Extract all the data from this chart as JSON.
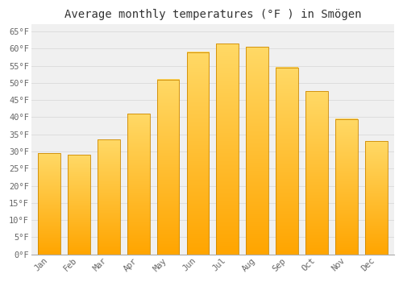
{
  "title": "Average monthly temperatures (°F ) in Smögen",
  "months": [
    "Jan",
    "Feb",
    "Mar",
    "Apr",
    "May",
    "Jun",
    "Jul",
    "Aug",
    "Sep",
    "Oct",
    "Nov",
    "Dec"
  ],
  "values": [
    29.5,
    29.0,
    33.5,
    41.0,
    51.0,
    59.0,
    61.5,
    60.5,
    54.5,
    47.5,
    39.5,
    33.0
  ],
  "bar_color_top": "#FFD966",
  "bar_color_bottom": "#FFA500",
  "bar_edge_color": "#CC8800",
  "background_color": "#FFFFFF",
  "plot_bg_color": "#F0F0F0",
  "grid_color": "#DDDDDD",
  "ylim": [
    0,
    67
  ],
  "yticks": [
    0,
    5,
    10,
    15,
    20,
    25,
    30,
    35,
    40,
    45,
    50,
    55,
    60,
    65
  ],
  "ytick_labels": [
    "0°F",
    "5°F",
    "10°F",
    "15°F",
    "20°F",
    "25°F",
    "30°F",
    "35°F",
    "40°F",
    "45°F",
    "50°F",
    "55°F",
    "60°F",
    "65°F"
  ],
  "title_fontsize": 10,
  "tick_fontsize": 7.5,
  "tick_color": "#666666",
  "title_color": "#333333"
}
